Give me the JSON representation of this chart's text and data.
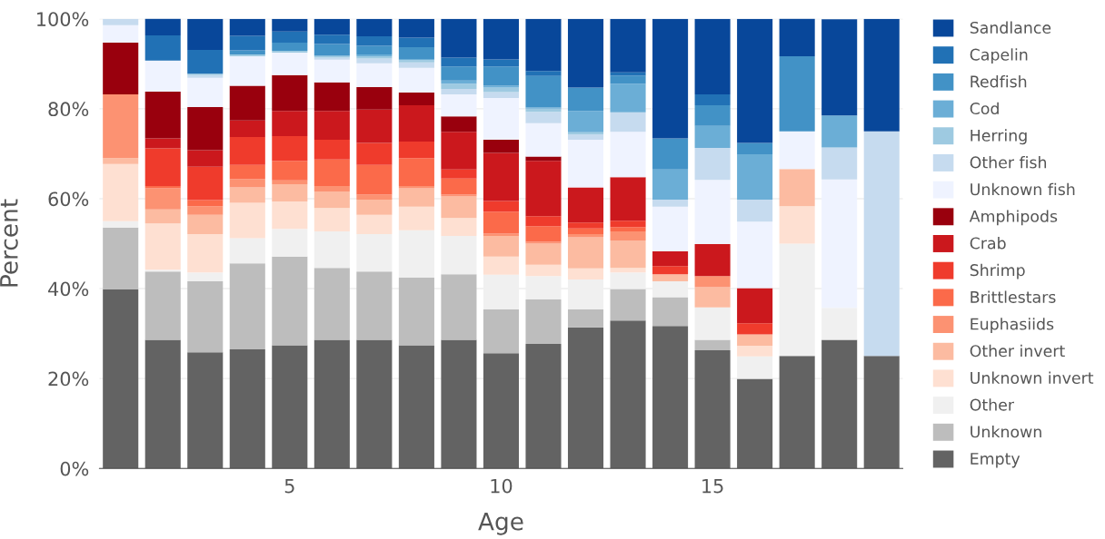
{
  "chart_data": {
    "type": "bar",
    "stacked": true,
    "xlabel": "Age",
    "ylabel": "Percent",
    "x": [
      1,
      2,
      3,
      4,
      5,
      6,
      7,
      8,
      9,
      10,
      11,
      12,
      13,
      14,
      15,
      16,
      17,
      18,
      19
    ],
    "xlim": [
      0.5,
      19.5
    ],
    "xticks": [
      5,
      10,
      15
    ],
    "ylim": [
      0,
      100
    ],
    "yticks": [
      {
        "value": 0,
        "label": "0%"
      },
      {
        "value": 20,
        "label": "20%"
      },
      {
        "value": 40,
        "label": "40%"
      },
      {
        "value": 60,
        "label": "60%"
      },
      {
        "value": 80,
        "label": "80%"
      },
      {
        "value": 100,
        "label": "100%"
      }
    ],
    "grid": "y",
    "legend": "right",
    "series": [
      {
        "name": "Empty",
        "color": "#636363",
        "values": [
          39.8,
          28.6,
          25.8,
          26.5,
          27.4,
          28.6,
          28.6,
          27.4,
          28.6,
          25.6,
          27.7,
          31.4,
          32.9,
          31.7,
          26.3,
          19.9,
          25,
          28.6,
          25
        ]
      },
      {
        "name": "Unknown",
        "color": "#bdbdbd",
        "values": [
          13.8,
          15.2,
          15.8,
          19.1,
          19.7,
          16.0,
          15.2,
          15.1,
          14.6,
          9.8,
          9.9,
          4.0,
          7.0,
          6.4,
          2.3,
          0,
          0,
          0,
          0
        ]
      },
      {
        "name": "Other",
        "color": "#f0f0f0",
        "values": [
          1.4,
          0.4,
          2.0,
          5.6,
          6.2,
          8.1,
          8.3,
          10.5,
          8.5,
          7.7,
          5.2,
          6.6,
          3.7,
          3.5,
          7.2,
          5.0,
          25,
          7.1,
          0
        ]
      },
      {
        "name": "Unknown invert",
        "color": "#fee0d2",
        "values": [
          12.7,
          10.3,
          8.5,
          7.9,
          6.1,
          5.2,
          4.3,
          5.2,
          4.0,
          4.0,
          2.5,
          2.5,
          1.0,
          0,
          0,
          2.4,
          8.3,
          0,
          0
        ]
      },
      {
        "name": "Other invert",
        "color": "#fcbba1",
        "values": [
          1.3,
          3.1,
          4.3,
          3.4,
          3.8,
          3.7,
          3.4,
          4.1,
          4.8,
          4.6,
          4.7,
          6.9,
          6.1,
          1.6,
          4.5,
          2.5,
          8.3,
          0,
          0
        ]
      },
      {
        "name": "Euphasiids",
        "color": "#fc9272",
        "values": [
          14.2,
          4.7,
          1.9,
          1.9,
          0.9,
          1.2,
          1.1,
          0.5,
          0.4,
          0.5,
          0.4,
          0.7,
          2.0,
          0,
          2.5,
          0,
          0,
          0,
          0
        ]
      },
      {
        "name": "Brittlestars",
        "color": "#fb6a4a",
        "values": [
          0,
          0.5,
          1.4,
          3.1,
          4.3,
          5.9,
          6.6,
          6.2,
          3.6,
          4.9,
          3.5,
          1.3,
          1.0,
          0,
          0,
          0,
          0,
          0,
          0
        ]
      },
      {
        "name": "Shrimp",
        "color": "#ef3b2c",
        "values": [
          0,
          8.4,
          7.4,
          6.2,
          5.5,
          4.4,
          4.9,
          3.7,
          2.0,
          2.4,
          2.2,
          1.3,
          1.4,
          1.8,
          0,
          2.5,
          0,
          0,
          0
        ]
      },
      {
        "name": "Crab",
        "color": "#cb181d",
        "values": [
          0,
          2.2,
          3.7,
          3.7,
          5.6,
          6.4,
          7.4,
          8.1,
          8.4,
          10.7,
          12.3,
          7.8,
          9.7,
          3.3,
          7.1,
          7.8,
          0,
          0,
          0
        ]
      },
      {
        "name": "Amphipods",
        "color": "#99000d",
        "values": [
          11.5,
          10.4,
          9.6,
          7.7,
          8.0,
          6.4,
          5.0,
          2.8,
          3.4,
          2.9,
          1.0,
          0,
          0,
          0,
          0,
          0,
          0,
          0,
          0
        ]
      },
      {
        "name": "Unknown fish",
        "color": "#eff3ff",
        "values": [
          3.9,
          6.9,
          6.5,
          6.6,
          5.0,
          5.0,
          5.3,
          5.5,
          4.9,
          9.3,
          7.4,
          10.6,
          10.1,
          9.9,
          14.3,
          14.8,
          8.4,
          28.6,
          0
        ]
      },
      {
        "name": "Other fish",
        "color": "#c6dbef",
        "values": [
          1.4,
          0,
          0.6,
          null,
          null,
          0.5,
          1.1,
          1.2,
          1.2,
          1.3,
          2.5,
          1.2,
          4.3,
          1.6,
          7.1,
          4.9,
          0,
          7.1,
          50
        ]
      },
      {
        "name": "Herring",
        "color": "#9ecae1",
        "values": [
          0,
          0,
          0.3,
          0.4,
          0.4,
          0.4,
          0.5,
          0.5,
          1.2,
          1.0,
          0.7,
          0.5,
          0,
          0,
          0,
          0,
          0,
          0,
          0
        ]
      },
      {
        "name": "Cod",
        "color": "#6baed6",
        "values": [
          0,
          0,
          0,
          0,
          0,
          0,
          0.4,
          0.3,
          0.7,
          0.4,
          0.3,
          4.7,
          6.4,
          6.7,
          4.9,
          10.1,
          0,
          7.1,
          0
        ]
      },
      {
        "name": "Redfish",
        "color": "#4292c6",
        "values": [
          0,
          0,
          0,
          0.9,
          1.8,
          2.6,
          1.9,
          2.6,
          3.1,
          4.3,
          7.0,
          5.2,
          1.8,
          6.9,
          4.6,
          2.5,
          16.7,
          0,
          0
        ]
      },
      {
        "name": "Capelin",
        "color": "#2171b5",
        "values": [
          0,
          5.6,
          5.3,
          3.2,
          2.5,
          2.1,
          2.1,
          2.1,
          2.0,
          1.6,
          1.1,
          0,
          0.7,
          0,
          2.4,
          0,
          0,
          0,
          0
        ]
      },
      {
        "name": "Sandlance",
        "color": "#08479a",
        "values": [
          0,
          3.8,
          6.9,
          3.8,
          2.8,
          3.5,
          3.9,
          4.2,
          8.6,
          9.0,
          11.6,
          15.3,
          11.9,
          26.6,
          16.8,
          27.6,
          8.4,
          21.4,
          25
        ]
      }
    ]
  }
}
